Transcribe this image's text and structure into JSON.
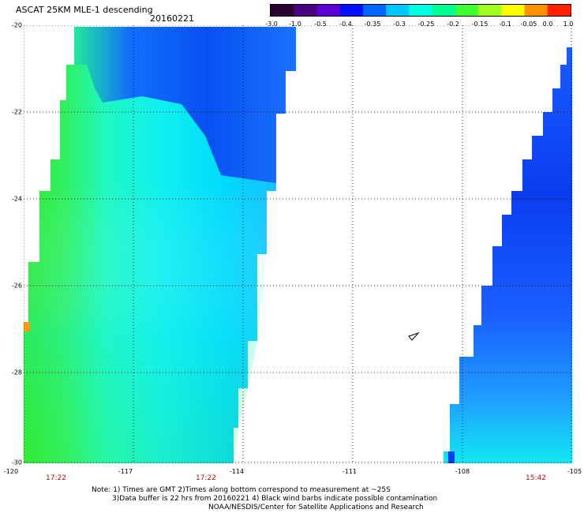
{
  "header": {
    "title": "ASCAT 25KM MLE-1 descending",
    "date": "20160221"
  },
  "colorbar": {
    "labels": [
      "-3.0",
      "-1.0",
      "-0.5",
      "-0.4",
      "-0.35",
      "-0.3",
      "-0.25",
      "-0.2",
      "-0.15",
      "-0.1",
      "-0.05",
      "0.0",
      "1.0"
    ],
    "colors": [
      "#2a0030",
      "#4a0080",
      "#5a00d0",
      "#0010ff",
      "#0066ff",
      "#00c8ff",
      "#00ffe0",
      "#00ff90",
      "#40ff30",
      "#a0ff20",
      "#ffff00",
      "#ff9000",
      "#ff2000"
    ]
  },
  "map": {
    "lon_ticks": [
      "-120",
      "-117",
      "-114",
      "-111",
      "-108",
      "-105"
    ],
    "lat_ticks": [
      "-20",
      "-22",
      "-24",
      "-26",
      "-28",
      "-30"
    ],
    "lon_range": [
      -120,
      -105
    ],
    "lat_range": [
      -30,
      -20
    ],
    "times": [
      "17:22",
      "17:22",
      "15:42"
    ],
    "grid_style": "dotted"
  },
  "notes": {
    "line1": "Note: 1) Times are GMT 2)Times along bottom correspond to measurement at ~25S",
    "line2": "3)Data buffer is 22 hrs from 20160221 4) Black wind barbs indicate possible contamination",
    "line3": "NOAA/NESDIS/Center for Satellite Applications and Research"
  }
}
